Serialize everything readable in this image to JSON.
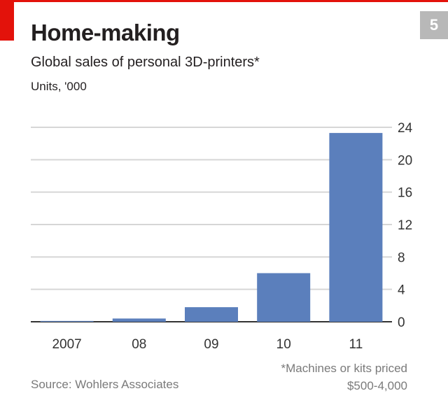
{
  "page": {
    "badge": "5"
  },
  "colors": {
    "accent": "#e3120b",
    "bar": "#5b7fbc",
    "grid": "#d6d6d6",
    "axis": "#333333"
  },
  "chart_data": {
    "type": "bar",
    "title": "Home-making",
    "subtitle": "Global sales of personal 3D-printers*",
    "units": "Units, '000",
    "categories": [
      "2007",
      "08",
      "09",
      "10",
      "11"
    ],
    "values": [
      0.1,
      0.4,
      1.8,
      6.0,
      23.3
    ],
    "ylim": [
      0,
      24
    ],
    "yticks": [
      0,
      4,
      8,
      12,
      16,
      20,
      24
    ],
    "axis_position": "right",
    "grid": true,
    "footnote": "*Machines or kits priced",
    "footnote_2": "$500-4,000",
    "source": "Source: Wohlers Associates"
  }
}
